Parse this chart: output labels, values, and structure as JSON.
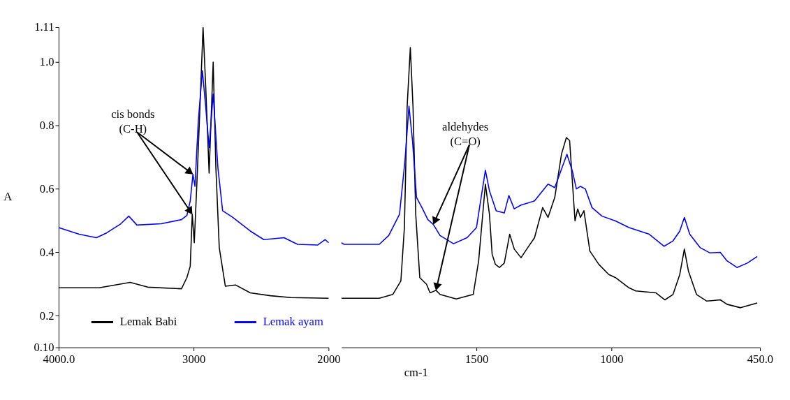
{
  "chart_data": [
    {
      "type": "line",
      "ylabel": "A",
      "xlim": [
        4000,
        2000
      ],
      "xticks": [
        {
          "value": 4000,
          "label": "4000.0"
        },
        3000,
        2000
      ],
      "ylim": [
        0.1,
        1.11
      ],
      "yticks": [
        {
          "value": 0.1,
          "label": "0.10"
        },
        0.2,
        0.4,
        0.6,
        0.8,
        {
          "value": 1.0,
          "label": "1.0"
        },
        1.11
      ],
      "grid": false,
      "legend": "bottom",
      "annotations": [
        {
          "text": "cis bonds\n(C-H)",
          "x": 3005,
          "y": 0.646
        }
      ],
      "series": [
        {
          "name": "Lemak Babi",
          "color": "#000000",
          "x": [
            4000,
            3700,
            3470,
            3340,
            3090,
            3050,
            3025,
            3010,
            2995,
            2975,
            2955,
            2930,
            2910,
            2885,
            2855,
            2835,
            2810,
            2765,
            2690,
            2580,
            2430,
            2280,
            2000
          ],
          "values": [
            0.288,
            0.288,
            0.305,
            0.29,
            0.285,
            0.32,
            0.356,
            0.52,
            0.43,
            0.625,
            0.836,
            1.109,
            0.92,
            0.65,
            1.0,
            0.667,
            0.415,
            0.293,
            0.297,
            0.272,
            0.263,
            0.257,
            0.255
          ]
        },
        {
          "name": "Lemak ayam",
          "color": "#0000ff",
          "x": [
            4000,
            3848,
            3720,
            3645,
            3545,
            3480,
            3420,
            3240,
            3090,
            3050,
            3025,
            3005,
            2990,
            2965,
            2935,
            2910,
            2885,
            2855,
            2820,
            2785,
            2710,
            2580,
            2480,
            2330,
            2230,
            2080,
            2025,
            2000
          ],
          "values": [
            0.478,
            0.457,
            0.446,
            0.461,
            0.488,
            0.514,
            0.486,
            0.49,
            0.503,
            0.516,
            0.562,
            0.646,
            0.608,
            0.815,
            0.973,
            0.857,
            0.73,
            0.899,
            0.667,
            0.531,
            0.51,
            0.467,
            0.44,
            0.446,
            0.425,
            0.423,
            0.44,
            0.43
          ]
        }
      ]
    },
    {
      "type": "line",
      "xlabel": "cm-1",
      "xlim": [
        2000,
        450
      ],
      "xticks": [
        1500,
        1000,
        {
          "value": 450,
          "label": "450.0"
        }
      ],
      "ylim": [
        0.1,
        1.11
      ],
      "tick_labels": "x",
      "grid": false,
      "annotations": [
        {
          "text": "aldehydes\n(C=O)",
          "x": 1660,
          "y": 0.488
        }
      ],
      "series": [
        {
          "color": "#000000",
          "x": [
            2000,
            1860,
            1810,
            1780,
            1767,
            1757,
            1745,
            1735,
            1725,
            1710,
            1685,
            1672,
            1650,
            1635,
            1575,
            1512,
            1492,
            1467,
            1452,
            1442,
            1430,
            1415,
            1397,
            1377,
            1360,
            1335,
            1310,
            1285,
            1255,
            1235,
            1210,
            1185,
            1167,
            1155,
            1135,
            1125,
            1115,
            1102,
            1080,
            1047,
            1010,
            985,
            935,
            910,
            835,
            802,
            772,
            747,
            730,
            715,
            685,
            647,
            597,
            572,
            522,
            460
          ],
          "values": [
            0.255,
            0.255,
            0.267,
            0.31,
            0.478,
            0.857,
            1.046,
            0.857,
            0.52,
            0.32,
            0.299,
            0.272,
            0.28,
            0.267,
            0.253,
            0.267,
            0.373,
            0.615,
            0.52,
            0.394,
            0.362,
            0.352,
            0.366,
            0.457,
            0.41,
            0.383,
            0.415,
            0.446,
            0.541,
            0.51,
            0.573,
            0.71,
            0.762,
            0.752,
            0.499,
            0.537,
            0.51,
            0.531,
            0.404,
            0.362,
            0.33,
            0.32,
            0.288,
            0.278,
            0.272,
            0.25,
            0.267,
            0.33,
            0.41,
            0.341,
            0.267,
            0.246,
            0.25,
            0.236,
            0.225,
            0.24
          ]
        },
        {
          "color": "#0000ff",
          "x": [
            2000,
            1990,
            1860,
            1825,
            1785,
            1765,
            1750,
            1737,
            1722,
            1702,
            1680,
            1660,
            1635,
            1585,
            1535,
            1500,
            1467,
            1452,
            1427,
            1397,
            1380,
            1360,
            1335,
            1285,
            1235,
            1210,
            1190,
            1165,
            1145,
            1130,
            1115,
            1097,
            1072,
            1035,
            985,
            935,
            860,
            805,
            772,
            747,
            730,
            710,
            672,
            635,
            597,
            572,
            535,
            497,
            460
          ],
          "values": [
            0.43,
            0.425,
            0.425,
            0.453,
            0.52,
            0.688,
            0.861,
            0.752,
            0.573,
            0.541,
            0.503,
            0.488,
            0.453,
            0.427,
            0.446,
            0.478,
            0.659,
            0.594,
            0.531,
            0.524,
            0.579,
            0.537,
            0.549,
            0.562,
            0.615,
            0.604,
            0.651,
            0.709,
            0.657,
            0.6,
            0.608,
            0.6,
            0.541,
            0.514,
            0.499,
            0.478,
            0.457,
            0.419,
            0.436,
            0.467,
            0.51,
            0.457,
            0.415,
            0.398,
            0.4,
            0.373,
            0.352,
            0.366,
            0.387
          ]
        }
      ]
    }
  ]
}
